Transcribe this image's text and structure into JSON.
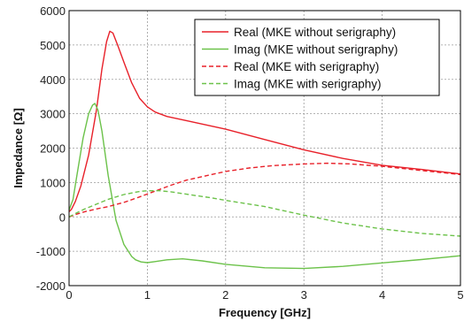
{
  "chart_data": {
    "type": "line",
    "xlabel": "Frequency [GHz]",
    "ylabel": "Impedance [Ω]",
    "xlim": [
      0,
      5
    ],
    "ylim": [
      -2000,
      6000
    ],
    "xticks": [
      "0",
      "1",
      "2",
      "3",
      "4",
      "5"
    ],
    "yticks": [
      "-2000",
      "-1000",
      "0",
      "1000",
      "2000",
      "3000",
      "4000",
      "5000",
      "6000"
    ],
    "grid": true,
    "legend_position": "top-right",
    "colors": {
      "red": "#e8212a",
      "green": "#6cc24a"
    },
    "series": [
      {
        "name": "Real (MKE without serigraphy)",
        "color": "#e8212a",
        "dash": "solid",
        "x": [
          0,
          0.03,
          0.08,
          0.15,
          0.25,
          0.35,
          0.42,
          0.48,
          0.52,
          0.56,
          0.62,
          0.7,
          0.8,
          0.9,
          1.0,
          1.1,
          1.25,
          1.5,
          2.0,
          2.5,
          3.0,
          3.5,
          4.0,
          4.5,
          5.0
        ],
        "y": [
          150,
          220,
          450,
          900,
          1800,
          3100,
          4300,
          5100,
          5400,
          5350,
          5000,
          4500,
          3900,
          3450,
          3200,
          3050,
          2920,
          2800,
          2550,
          2250,
          1950,
          1700,
          1500,
          1380,
          1250
        ]
      },
      {
        "name": "Imag (MKE without serigraphy)",
        "color": "#6cc24a",
        "dash": "solid",
        "x": [
          0,
          0.05,
          0.1,
          0.18,
          0.25,
          0.3,
          0.33,
          0.37,
          0.42,
          0.5,
          0.6,
          0.7,
          0.8,
          0.85,
          0.92,
          1.0,
          1.1,
          1.25,
          1.45,
          1.7,
          2.0,
          2.5,
          3.0,
          3.5,
          4.0,
          4.5,
          5.0
        ],
        "y": [
          200,
          500,
          1200,
          2300,
          3000,
          3250,
          3300,
          3100,
          2500,
          1200,
          -100,
          -800,
          -1150,
          -1250,
          -1310,
          -1330,
          -1300,
          -1250,
          -1220,
          -1280,
          -1380,
          -1480,
          -1500,
          -1440,
          -1340,
          -1240,
          -1130
        ]
      },
      {
        "name": "Real (MKE with serigraphy)",
        "color": "#e8212a",
        "dash": "dashed",
        "x": [
          0,
          0.1,
          0.2,
          0.35,
          0.5,
          0.7,
          0.9,
          1.1,
          1.3,
          1.5,
          1.8,
          2.0,
          2.3,
          2.6,
          3.0,
          3.3,
          3.6,
          4.0,
          4.5,
          5.0
        ],
        "y": [
          0,
          80,
          150,
          230,
          300,
          420,
          580,
          750,
          920,
          1070,
          1220,
          1320,
          1420,
          1490,
          1540,
          1560,
          1540,
          1470,
          1350,
          1230
        ]
      },
      {
        "name": "Imag (MKE with serigraphy)",
        "color": "#6cc24a",
        "dash": "dashed",
        "x": [
          0,
          0.1,
          0.2,
          0.35,
          0.5,
          0.7,
          0.9,
          1.0,
          1.15,
          1.3,
          1.5,
          1.8,
          2.0,
          2.5,
          3.0,
          3.5,
          4.0,
          4.5,
          5.0
        ],
        "y": [
          0,
          120,
          230,
          370,
          510,
          650,
          740,
          760,
          760,
          730,
          660,
          560,
          480,
          300,
          50,
          -180,
          -350,
          -480,
          -560
        ]
      }
    ]
  }
}
